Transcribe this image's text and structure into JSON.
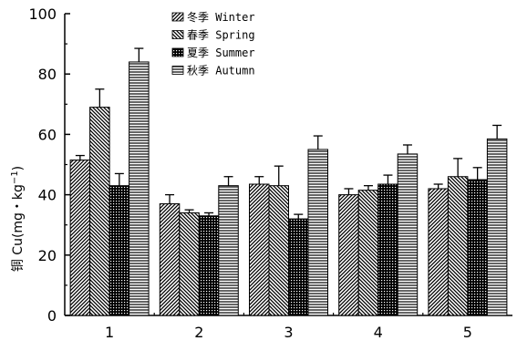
{
  "chart_data": {
    "type": "bar",
    "categories": [
      "1",
      "2",
      "3",
      "4",
      "5"
    ],
    "series": [
      {
        "name": "冬季 Winter",
        "pattern": "diag-fwd",
        "values": [
          51.5,
          37,
          43.5,
          40,
          42
        ],
        "errors": [
          1.5,
          3,
          2.5,
          2,
          1.5
        ]
      },
      {
        "name": "春季 Spring",
        "pattern": "diag-back",
        "values": [
          69,
          34,
          43,
          41.5,
          46
        ],
        "errors": [
          6,
          1,
          6.5,
          1.5,
          6
        ]
      },
      {
        "name": "夏季 Summer",
        "pattern": "dots",
        "values": [
          43,
          33,
          32,
          43.5,
          45
        ],
        "errors": [
          4,
          1,
          1.5,
          3,
          4
        ]
      },
      {
        "name": "秋季 Autumn",
        "pattern": "horizontal",
        "values": [
          84,
          43,
          55,
          53.5,
          58.5
        ],
        "errors": [
          4.5,
          3,
          4.5,
          3,
          4.5
        ]
      }
    ],
    "ylabel_main": "铜 Cu(mg・kg",
    "ylabel_sup": "−1",
    "ylabel_end": ")",
    "xlabel": "",
    "ylim": [
      0,
      100
    ],
    "yticks": [
      "0",
      "20",
      "40",
      "60",
      "80",
      "100"
    ],
    "legend_position": "top-center",
    "grid": false
  }
}
